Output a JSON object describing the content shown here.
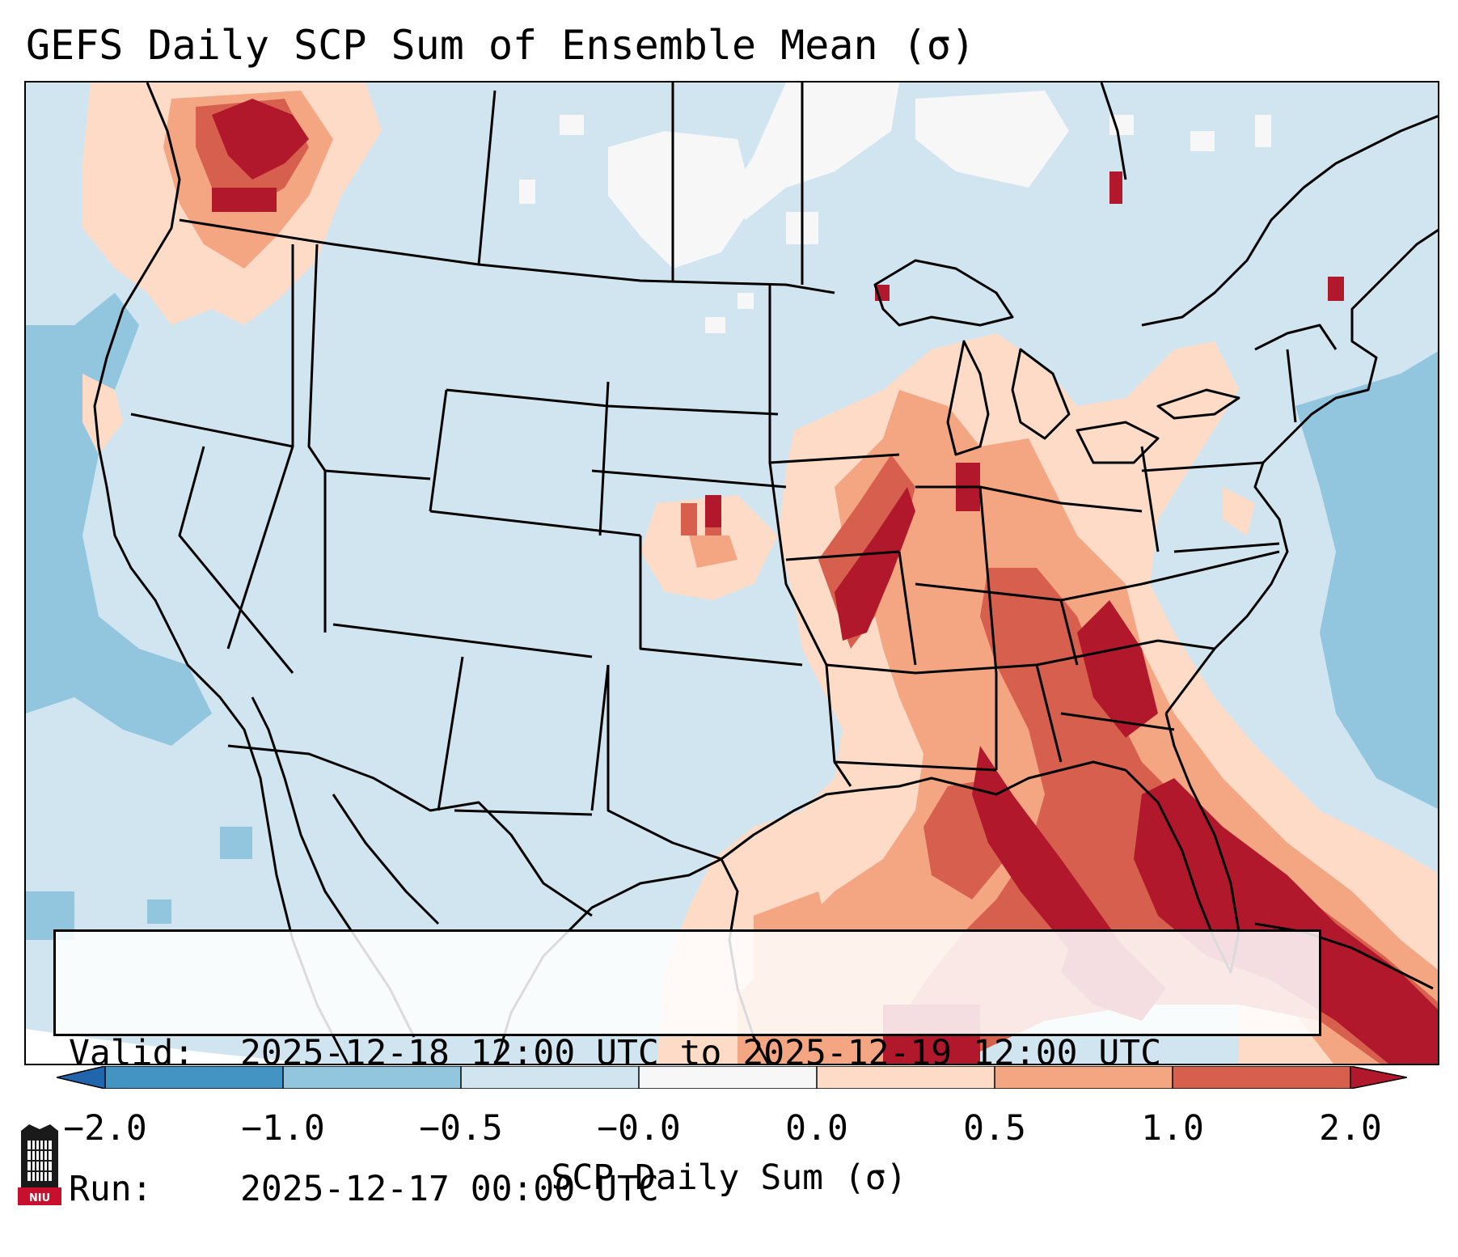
{
  "title": "GEFS Daily SCP Sum of Ensemble Mean (σ)",
  "info": {
    "valid_label": "Valid:",
    "valid_value": "2025-12-18 12:00 UTC to 2025-12-19 12:00 UTC",
    "run_label": "Run:",
    "run_value": "2025-12-17 00:00 UTC"
  },
  "colorbar": {
    "label": "SCP Daily Sum (σ)",
    "ticks": [
      "−2.0",
      "−1.0",
      "−0.5",
      "−0.0",
      "0.0",
      "0.5",
      "1.0",
      "2.0"
    ],
    "bins": [
      {
        "range": "-2.0 to -1.0",
        "color": "#4393c3"
      },
      {
        "range": "-1.0 to -0.5",
        "color": "#92c5de"
      },
      {
        "range": "-0.5 to -0.0",
        "color": "#d1e5f0"
      },
      {
        "range": "-0.0 to 0.0",
        "color": "#f7f7f7"
      },
      {
        "range": "0.0 to 0.5",
        "color": "#fddbc7"
      },
      {
        "range": "0.5 to 1.0",
        "color": "#f4a582"
      },
      {
        "range": "1.0 to 2.0",
        "color": "#d6604d"
      }
    ],
    "under_color": "#2166ac",
    "over_color": "#b2182b"
  },
  "logo": {
    "text": "NIU",
    "color": "#c8102e"
  }
}
